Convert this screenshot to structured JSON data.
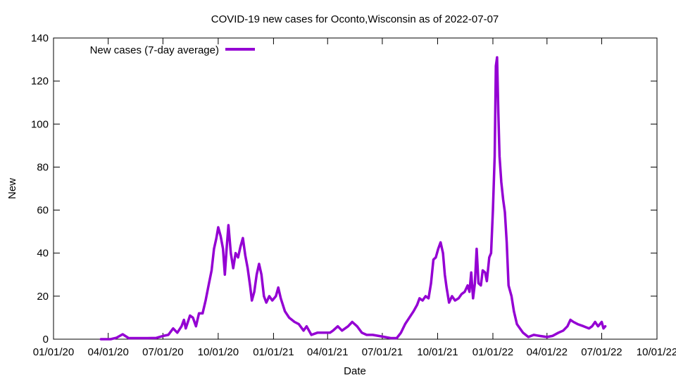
{
  "chart_data": {
    "type": "line",
    "title": "COVID-19 new cases for Oconto,Wisconsin as of 2022-07-07",
    "xlabel": "Date",
    "ylabel": "New",
    "x_axis": {
      "type": "date",
      "range": [
        "2020-01-01",
        "2022-10-01"
      ],
      "ticks": [
        {
          "date": "2020-01-01",
          "label": "01/01/20"
        },
        {
          "date": "2020-04-01",
          "label": "04/01/20"
        },
        {
          "date": "2020-07-01",
          "label": "07/01/20"
        },
        {
          "date": "2020-10-01",
          "label": "10/01/20"
        },
        {
          "date": "2021-01-01",
          "label": "01/01/21"
        },
        {
          "date": "2021-04-01",
          "label": "04/01/21"
        },
        {
          "date": "2021-07-01",
          "label": "07/01/21"
        },
        {
          "date": "2021-10-01",
          "label": "10/01/21"
        },
        {
          "date": "2022-01-01",
          "label": "01/01/22"
        },
        {
          "date": "2022-04-01",
          "label": "04/01/22"
        },
        {
          "date": "2022-07-01",
          "label": "07/01/22"
        },
        {
          "date": "2022-10-01",
          "label": "10/01/22"
        }
      ]
    },
    "y_axis": {
      "range": [
        0,
        140
      ],
      "ticks": [
        0,
        20,
        40,
        60,
        80,
        100,
        120,
        140
      ]
    },
    "grid": false,
    "legend_position": "top-left",
    "series": [
      {
        "name": "New cases (7-day average)",
        "color": "#9400d3",
        "points": [
          [
            "2020-03-20",
            0
          ],
          [
            "2020-04-05",
            0
          ],
          [
            "2020-04-15",
            0.7
          ],
          [
            "2020-04-25",
            2.3
          ],
          [
            "2020-05-05",
            0.5
          ],
          [
            "2020-05-20",
            0.5
          ],
          [
            "2020-06-05",
            0.5
          ],
          [
            "2020-06-20",
            0.6
          ],
          [
            "2020-07-01",
            1.5
          ],
          [
            "2020-07-10",
            2
          ],
          [
            "2020-07-18",
            5
          ],
          [
            "2020-07-25",
            3
          ],
          [
            "2020-08-01",
            6
          ],
          [
            "2020-08-05",
            9
          ],
          [
            "2020-08-08",
            5
          ],
          [
            "2020-08-15",
            11
          ],
          [
            "2020-08-20",
            10
          ],
          [
            "2020-08-25",
            6
          ],
          [
            "2020-08-30",
            12
          ],
          [
            "2020-09-05",
            12
          ],
          [
            "2020-09-10",
            18
          ],
          [
            "2020-09-15",
            25
          ],
          [
            "2020-09-20",
            32
          ],
          [
            "2020-09-24",
            42
          ],
          [
            "2020-09-28",
            47
          ],
          [
            "2020-10-01",
            52
          ],
          [
            "2020-10-05",
            48
          ],
          [
            "2020-10-09",
            42
          ],
          [
            "2020-10-12",
            30
          ],
          [
            "2020-10-15",
            42
          ],
          [
            "2020-10-18",
            53
          ],
          [
            "2020-10-22",
            40
          ],
          [
            "2020-10-26",
            33
          ],
          [
            "2020-10-30",
            40
          ],
          [
            "2020-11-03",
            38
          ],
          [
            "2020-11-07",
            43
          ],
          [
            "2020-11-11",
            47
          ],
          [
            "2020-11-15",
            39
          ],
          [
            "2020-11-19",
            33
          ],
          [
            "2020-11-23",
            25
          ],
          [
            "2020-11-26",
            18
          ],
          [
            "2020-11-30",
            22
          ],
          [
            "2020-12-04",
            30
          ],
          [
            "2020-12-08",
            35
          ],
          [
            "2020-12-12",
            30
          ],
          [
            "2020-12-16",
            20
          ],
          [
            "2020-12-20",
            17
          ],
          [
            "2020-12-25",
            20
          ],
          [
            "2020-12-30",
            18
          ],
          [
            "2021-01-05",
            20
          ],
          [
            "2021-01-09",
            24
          ],
          [
            "2021-01-13",
            19
          ],
          [
            "2021-01-20",
            13
          ],
          [
            "2021-01-27",
            10
          ],
          [
            "2021-02-05",
            8
          ],
          [
            "2021-02-12",
            7
          ],
          [
            "2021-02-20",
            4
          ],
          [
            "2021-02-25",
            6
          ],
          [
            "2021-03-05",
            2
          ],
          [
            "2021-03-15",
            3
          ],
          [
            "2021-03-25",
            3
          ],
          [
            "2021-04-05",
            3
          ],
          [
            "2021-04-10",
            4
          ],
          [
            "2021-04-18",
            6
          ],
          [
            "2021-04-25",
            4
          ],
          [
            "2021-05-05",
            6
          ],
          [
            "2021-05-12",
            8
          ],
          [
            "2021-05-20",
            6
          ],
          [
            "2021-05-28",
            3
          ],
          [
            "2021-06-05",
            2
          ],
          [
            "2021-06-15",
            2
          ],
          [
            "2021-06-25",
            1.5
          ],
          [
            "2021-07-05",
            1
          ],
          [
            "2021-07-15",
            0.5
          ],
          [
            "2021-07-25",
            0.5
          ],
          [
            "2021-08-01",
            3
          ],
          [
            "2021-08-08",
            7
          ],
          [
            "2021-08-15",
            10
          ],
          [
            "2021-08-22",
            13
          ],
          [
            "2021-08-28",
            16
          ],
          [
            "2021-09-01",
            19
          ],
          [
            "2021-09-06",
            18
          ],
          [
            "2021-09-11",
            20
          ],
          [
            "2021-09-16",
            19
          ],
          [
            "2021-09-20",
            26
          ],
          [
            "2021-09-24",
            37
          ],
          [
            "2021-09-28",
            38
          ],
          [
            "2021-10-02",
            42
          ],
          [
            "2021-10-06",
            45
          ],
          [
            "2021-10-10",
            40
          ],
          [
            "2021-10-13",
            30
          ],
          [
            "2021-10-16",
            24
          ],
          [
            "2021-10-20",
            17
          ],
          [
            "2021-10-25",
            20
          ],
          [
            "2021-10-30",
            18
          ],
          [
            "2021-11-05",
            19
          ],
          [
            "2021-11-10",
            21
          ],
          [
            "2021-11-15",
            22
          ],
          [
            "2021-11-20",
            25
          ],
          [
            "2021-11-23",
            22
          ],
          [
            "2021-11-26",
            31
          ],
          [
            "2021-11-29",
            19
          ],
          [
            "2021-12-02",
            26
          ],
          [
            "2021-12-05",
            42
          ],
          [
            "2021-12-08",
            26
          ],
          [
            "2021-12-12",
            25
          ],
          [
            "2021-12-15",
            32
          ],
          [
            "2021-12-19",
            31
          ],
          [
            "2021-12-22",
            27
          ],
          [
            "2021-12-26",
            38
          ],
          [
            "2021-12-29",
            40
          ],
          [
            "2022-01-01",
            60
          ],
          [
            "2022-01-04",
            85
          ],
          [
            "2022-01-06",
            127
          ],
          [
            "2022-01-08",
            131
          ],
          [
            "2022-01-10",
            105
          ],
          [
            "2022-01-12",
            85
          ],
          [
            "2022-01-15",
            73
          ],
          [
            "2022-01-18",
            65
          ],
          [
            "2022-01-21",
            59
          ],
          [
            "2022-01-24",
            45
          ],
          [
            "2022-01-27",
            25
          ],
          [
            "2022-02-01",
            20
          ],
          [
            "2022-02-05",
            13
          ],
          [
            "2022-02-10",
            7
          ],
          [
            "2022-02-15",
            5
          ],
          [
            "2022-02-20",
            3
          ],
          [
            "2022-03-01",
            1
          ],
          [
            "2022-03-10",
            2
          ],
          [
            "2022-03-20",
            1.5
          ],
          [
            "2022-04-01",
            1
          ],
          [
            "2022-04-10",
            1.5
          ],
          [
            "2022-04-20",
            3
          ],
          [
            "2022-04-28",
            4
          ],
          [
            "2022-05-05",
            6
          ],
          [
            "2022-05-10",
            9
          ],
          [
            "2022-05-15",
            8
          ],
          [
            "2022-05-22",
            7
          ],
          [
            "2022-06-01",
            6
          ],
          [
            "2022-06-10",
            5
          ],
          [
            "2022-06-15",
            6
          ],
          [
            "2022-06-20",
            8
          ],
          [
            "2022-06-25",
            6
          ],
          [
            "2022-07-01",
            8
          ],
          [
            "2022-07-04",
            5
          ],
          [
            "2022-07-07",
            6
          ]
        ]
      }
    ]
  }
}
